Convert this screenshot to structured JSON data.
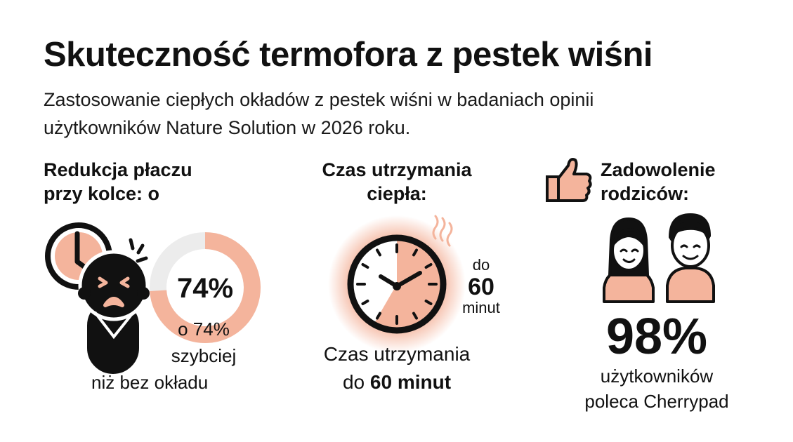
{
  "title": "Skuteczność termofora z pestek wiśni",
  "subtitle_lines": [
    "Zastosowanie ciepłych okładów z pestek wiśni w badaniach opinii",
    "użytkowników Nature Solution w 2026 roku."
  ],
  "colors": {
    "accent": "#f4b49c",
    "track": "#ececec",
    "ink": "#111111"
  },
  "crying": {
    "heading_lines": [
      "Redukcja płaczu",
      "przy kolce: o"
    ],
    "donut_value_pct": 74,
    "donut_label": "74%",
    "caption_lines": [
      "o 74%",
      "szybciej",
      "niż bez okładu"
    ],
    "icons": [
      "clock-icon",
      "crying-baby-icon",
      "donut-chart"
    ]
  },
  "heat": {
    "heading_lines": [
      "Czas utrzymania",
      "ciepła:"
    ],
    "side_label": {
      "top": "do",
      "value": "60",
      "unit": "minut"
    },
    "caption_line1": "Czas utrzymania",
    "caption_line2_prefix": "do ",
    "caption_line2_bold": "60 minut",
    "icons": [
      "warm-clock-icon",
      "steam-icon"
    ]
  },
  "satisfaction": {
    "heading_lines": [
      "Zadowolenie",
      "rodziców:"
    ],
    "value": "98%",
    "caption_lines": [
      "użytkowników",
      "poleca Cherrypad"
    ],
    "icons": [
      "thumbs-up-icon",
      "parents-icon"
    ]
  }
}
